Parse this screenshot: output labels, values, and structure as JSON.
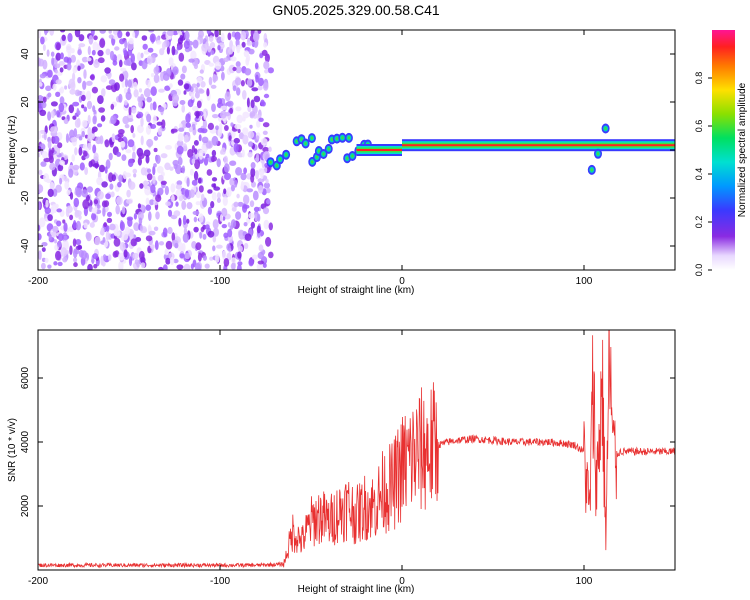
{
  "title": "GN05.2025.329.00.58.C41",
  "chart_data": [
    {
      "type": "heatmap",
      "name": "spectrogram",
      "xlabel": "Height of straight line (km)",
      "ylabel": "Frequency (Hz)",
      "xlim": [
        -200,
        150
      ],
      "ylim": [
        -50,
        50
      ],
      "xticks": [
        -200,
        -100,
        0,
        100
      ],
      "yticks": [
        -40,
        -20,
        0,
        20,
        40
      ],
      "noise_region_x": [
        -200,
        -72
      ],
      "signal_ridges": [
        {
          "x": [
            -72,
            -64
          ],
          "y": [
            -6,
            -3
          ],
          "amplitude": 0.35
        },
        {
          "x": [
            -58,
            -50
          ],
          "y": [
            2,
            5
          ],
          "amplitude": 0.35
        },
        {
          "x": [
            -50,
            -40
          ],
          "y": [
            -4,
            0
          ],
          "amplitude": 0.35
        },
        {
          "x": [
            -38,
            -30
          ],
          "y": [
            3,
            5
          ],
          "amplitude": 0.3
        },
        {
          "x": [
            -30,
            -18
          ],
          "y": [
            -2,
            2
          ],
          "amplitude": 0.3
        },
        {
          "x": [
            -25,
            0
          ],
          "y": [
            0,
            0
          ],
          "amplitude": 0.9
        },
        {
          "x": [
            0,
            150
          ],
          "y": [
            2,
            2
          ],
          "amplitude": 1.0
        },
        {
          "x": [
            105,
            112
          ],
          "y": [
            -8,
            8
          ],
          "amplitude": 0.35
        }
      ],
      "colorbar": {
        "label": "Normalized spectral amplitude",
        "range": [
          0,
          1
        ],
        "ticks": [
          "0.0",
          "0.2",
          "0.4",
          "0.6",
          "0.8"
        ]
      }
    },
    {
      "type": "line",
      "name": "snr",
      "xlabel": "Height of straight line (km)",
      "ylabel": "SNR (10 * v/v)",
      "xlim": [
        -200,
        150
      ],
      "ylim": [
        0,
        7500
      ],
      "xticks": [
        -200,
        -100,
        0,
        100
      ],
      "yticks": [
        2000,
        4000,
        6000
      ],
      "color": "#e83030",
      "series": [
        {
          "x": [
            -200,
            -180,
            -160,
            -140,
            -120,
            -100,
            -80,
            -65,
            -60,
            -55,
            -50,
            -45,
            -40,
            -35,
            -30,
            -25,
            -20,
            -15,
            -10,
            -5,
            0,
            5,
            10,
            15,
            20,
            25,
            30,
            40,
            50,
            60,
            70,
            80,
            90,
            95,
            100,
            103,
            105,
            107,
            110,
            112,
            114,
            116,
            120,
            130,
            140,
            150
          ],
          "y": [
            150,
            150,
            150,
            150,
            150,
            150,
            150,
            180,
            1200,
            900,
            1500,
            1700,
            1500,
            1800,
            2000,
            1700,
            2000,
            2000,
            2500,
            2600,
            3200,
            3500,
            3700,
            3800,
            3900,
            4000,
            4050,
            4100,
            4050,
            4000,
            4000,
            4000,
            3950,
            3900,
            3700,
            1800,
            5600,
            2600,
            6000,
            1000,
            6700,
            3500,
            3700,
            3700,
            3700,
            3700
          ]
        }
      ]
    }
  ]
}
